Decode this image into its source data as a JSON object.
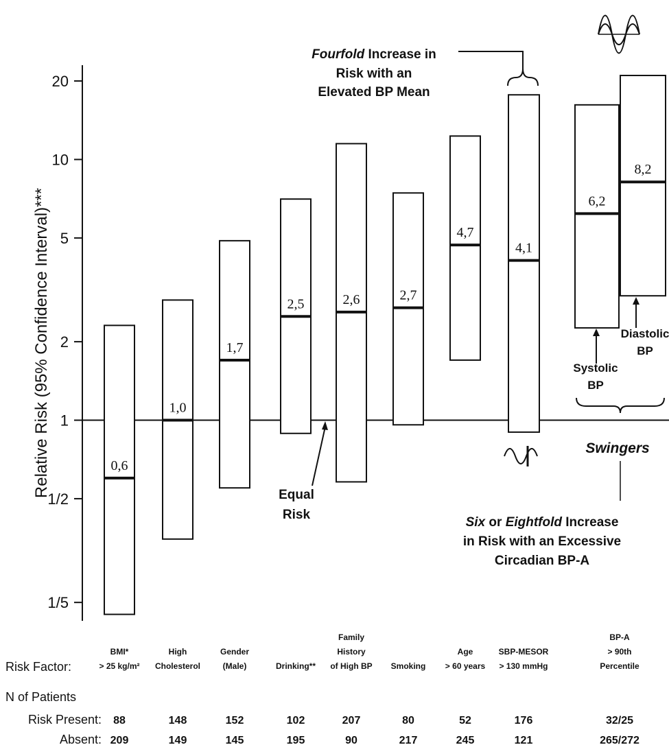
{
  "chart_data": {
    "type": "range_bar",
    "y_label": "Relative Risk (95% Confidence Interval)***",
    "log_scale": true,
    "ylim": [
      0.17,
      23
    ],
    "yticks": [
      {
        "value": 0.2,
        "label": "1/5"
      },
      {
        "value": 0.5,
        "label": "1/2"
      },
      1,
      2,
      5,
      10,
      20
    ],
    "reference_line": 1,
    "color": "#ffffff",
    "columns": [
      {
        "label_lines": [
          "BMI*",
          "> 25 kg/m²"
        ],
        "present": 88,
        "absent": 209,
        "bars": [
          {
            "low": 0.18,
            "high": 2.31,
            "estimate": 0.6,
            "estimate_label": "0,6"
          }
        ]
      },
      {
        "label_lines": [
          "High",
          "Cholesterol"
        ],
        "present": 148,
        "absent": 149,
        "bars": [
          {
            "low": 0.35,
            "high": 2.89,
            "estimate": 1.0,
            "estimate_label": "1,0"
          }
        ]
      },
      {
        "label_lines": [
          "Gender",
          "(Male)"
        ],
        "present": 152,
        "absent": 145,
        "bars": [
          {
            "low": 0.55,
            "high": 4.88,
            "estimate": 1.7,
            "estimate_label": "1,7"
          }
        ]
      },
      {
        "label_lines": [
          "Drinking**"
        ],
        "present": 102,
        "absent": 195,
        "bars": [
          {
            "low": 0.89,
            "high": 7.05,
            "estimate": 2.5,
            "estimate_label": "2,5"
          }
        ]
      },
      {
        "label_lines": [
          "Family",
          "History",
          "of High BP"
        ],
        "present": 207,
        "absent": 90,
        "bars": [
          {
            "low": 0.58,
            "high": 11.5,
            "estimate": 2.6,
            "estimate_label": "2,6"
          }
        ]
      },
      {
        "label_lines": [
          "Smoking"
        ],
        "present": 80,
        "absent": 217,
        "bars": [
          {
            "low": 0.96,
            "high": 7.44,
            "estimate": 2.7,
            "estimate_label": "2,7"
          }
        ]
      },
      {
        "label_lines": [
          "Age",
          "> 60 years"
        ],
        "present": 52,
        "absent": 245,
        "bars": [
          {
            "low": 1.7,
            "high": 12.3,
            "estimate": 4.7,
            "estimate_label": "4,7"
          }
        ]
      },
      {
        "label_lines": [
          "SBP-MESOR",
          "> 130 mmHg"
        ],
        "present": 176,
        "absent": 121,
        "bars": [
          {
            "low": 0.9,
            "high": 17.7,
            "estimate": 4.1,
            "estimate_label": "4,1"
          }
        ]
      },
      {
        "label_lines": [
          "BP-A",
          "> 90th",
          "Percentile"
        ],
        "present": "32/25",
        "absent": "265/272",
        "bars": [
          {
            "low": 2.26,
            "high": 16.2,
            "estimate": 6.2,
            "estimate_label": "6,2",
            "name_lines": [
              "Systolic",
              "BP"
            ]
          },
          {
            "low": 3.0,
            "high": 21,
            "estimate": 8.2,
            "estimate_label": "8,2",
            "name_lines": [
              "Diastolic",
              "BP"
            ]
          }
        ]
      }
    ],
    "table_labels": {
      "risk_factor": "Risk Factor:",
      "n_patients": "N of Patients",
      "present": "Risk Present:",
      "absent": "Absent:"
    },
    "annotations": {
      "fourfold": {
        "emphasis": "Fourfold",
        "lines": [
          " Increase in",
          "Risk with an",
          "Elevated BP Mean"
        ]
      },
      "equal_risk": [
        "Equal",
        "Risk"
      ],
      "swingers": "Swingers",
      "sixfold": {
        "first_line": [
          "Six",
          " or ",
          "Eightfold",
          " Increase"
        ],
        "lines": [
          "in Risk with an Excessive",
          "Circadian BP-A"
        ]
      }
    }
  }
}
